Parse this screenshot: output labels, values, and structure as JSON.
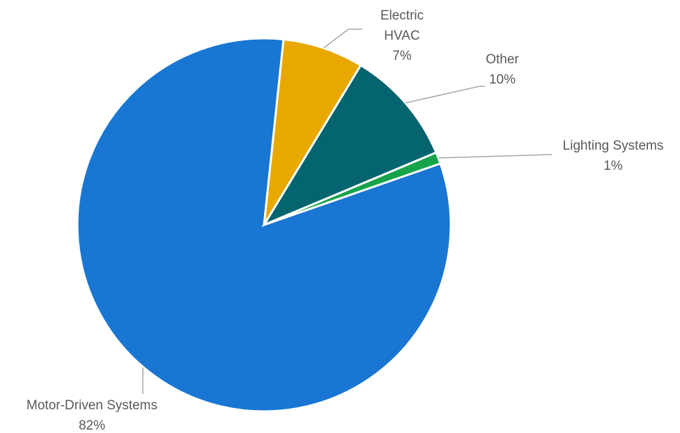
{
  "chart_data": {
    "type": "pie",
    "slices": [
      {
        "label": "Motor-Driven Systems",
        "value": 82,
        "value_label": "82%",
        "color": "#1976d2"
      },
      {
        "label": "Electric HVAC",
        "label_lines": [
          "Electric",
          "HVAC"
        ],
        "value": 7,
        "value_label": "7%",
        "color": "#e8a800"
      },
      {
        "label": "Other",
        "value": 10,
        "value_label": "10%",
        "color": "#046470"
      },
      {
        "label": "Lighting Systems",
        "value": 1,
        "value_label": "1%",
        "color": "#16a34a"
      }
    ],
    "legend": "none",
    "data_labels": "outside with leader lines"
  }
}
